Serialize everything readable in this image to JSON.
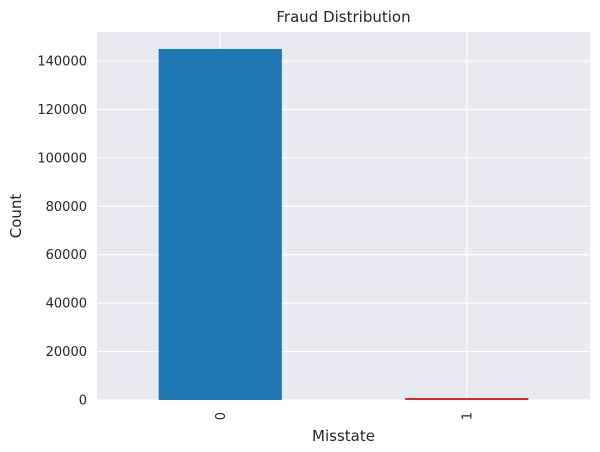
{
  "chart_data": {
    "type": "bar",
    "title": "Fraud Distribution",
    "xlabel": "Misstate",
    "ylabel": "Count",
    "categories": [
      "0",
      "1"
    ],
    "values": [
      145000,
      800
    ],
    "bar_colors": [
      "#1f77b4",
      "#d62728"
    ],
    "ylim": [
      0,
      152000
    ],
    "yticks": [
      0,
      20000,
      40000,
      60000,
      80000,
      100000,
      120000,
      140000
    ],
    "ytick_labels": [
      "0",
      "20000",
      "40000",
      "60000",
      "80000",
      "100000",
      "120000",
      "140000"
    ],
    "xtick_rotation": "vertical",
    "grid": true,
    "style": {
      "plot_background": "#eaeaf2",
      "grid_color": "#ffffff",
      "text_color": "#262626"
    }
  }
}
